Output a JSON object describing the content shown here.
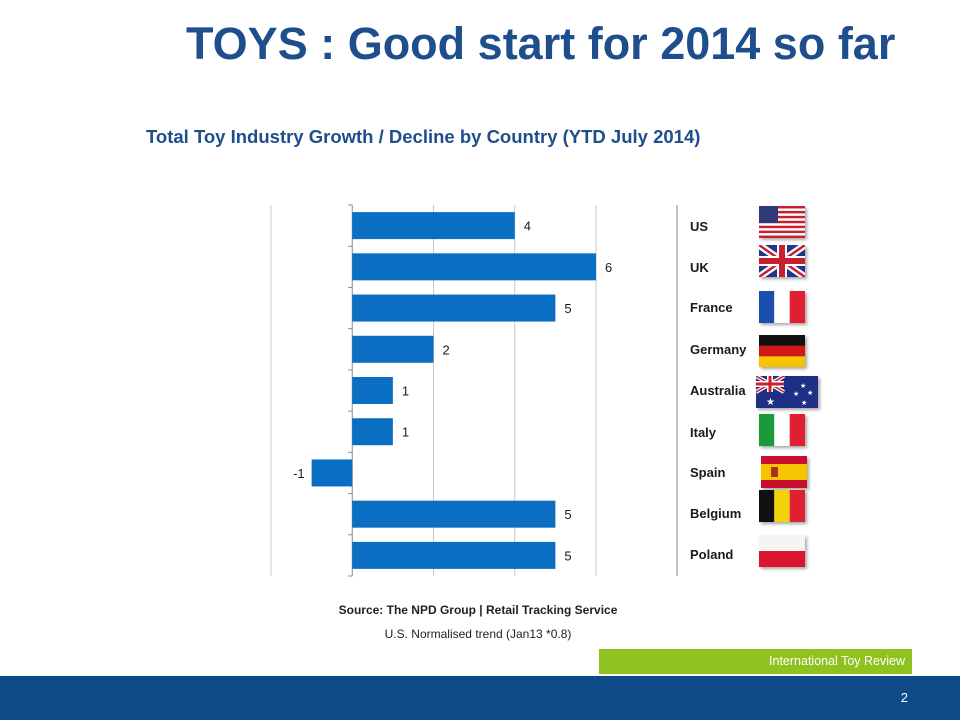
{
  "title": "TOYS : Good start for 2014 so far",
  "subtitle": "Total Toy Industry Growth /  Decline by Country (YTD July 2014)",
  "chart_data": {
    "type": "bar",
    "orientation": "horizontal",
    "categories": [
      "US",
      "UK",
      "France",
      "Germany",
      "Australia",
      "Italy",
      "Spain",
      "Belgium",
      "Poland"
    ],
    "values": [
      4,
      6,
      5,
      2,
      1,
      1,
      -1,
      5,
      5
    ],
    "data_labels": [
      "4",
      "6",
      "5",
      "2",
      "1",
      "1",
      "-1",
      "5",
      "5"
    ],
    "xlim": [
      -2,
      6
    ],
    "grid": true,
    "bar_color": "#0a6fc2",
    "legend_placement": "right"
  },
  "flags": [
    {
      "country": "US",
      "icon": "us-flag-icon"
    },
    {
      "country": "UK",
      "icon": "uk-flag-icon"
    },
    {
      "country": "France",
      "icon": "france-flag-icon"
    },
    {
      "country": "Germany",
      "icon": "germany-flag-icon"
    },
    {
      "country": "Australia",
      "icon": "australia-flag-icon"
    },
    {
      "country": "Italy",
      "icon": "italy-flag-icon"
    },
    {
      "country": "Spain",
      "icon": "spain-flag-icon"
    },
    {
      "country": "Belgium",
      "icon": "belgium-flag-icon"
    },
    {
      "country": "Poland",
      "icon": "poland-flag-icon"
    }
  ],
  "source": "Source: The NPD Group | Retail   Tracking Service",
  "source_note": "U.S. Normalised trend (Jan13 *0.8)",
  "footer": {
    "label": "International Toy Review",
    "page_number": "2"
  },
  "colors": {
    "title": "#1f4e8c",
    "accent_green": "#8dc21f",
    "footer_blue": "#0f4a88"
  }
}
